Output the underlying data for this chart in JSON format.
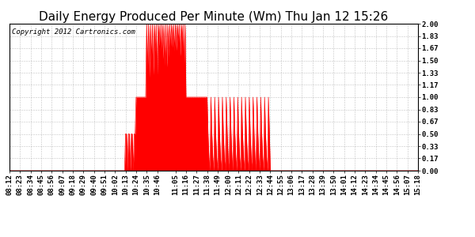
{
  "title": "Daily Energy Produced Per Minute (Wm) Thu Jan 12 15:26",
  "copyright": "Copyright 2012 Cartronics.com",
  "yticks": [
    0.0,
    0.17,
    0.33,
    0.5,
    0.67,
    0.83,
    1.0,
    1.17,
    1.33,
    1.5,
    1.67,
    1.83,
    2.0
  ],
  "ylim": [
    0.0,
    2.0
  ],
  "line_color": "#FF0000",
  "bg_color": "#FFFFFF",
  "grid_color": "#AAAAAA",
  "title_fontsize": 11,
  "copyright_fontsize": 6.5,
  "tick_label_fontsize": 6.5,
  "time_labels": [
    "08:12",
    "08:23",
    "08:34",
    "08:45",
    "08:56",
    "09:07",
    "09:18",
    "09:29",
    "09:40",
    "09:51",
    "10:02",
    "10:13",
    "10:24",
    "10:35",
    "10:46",
    "11:05",
    "11:16",
    "11:27",
    "11:38",
    "11:49",
    "12:00",
    "12:11",
    "12:22",
    "12:33",
    "12:44",
    "12:55",
    "13:06",
    "13:17",
    "13:28",
    "13:39",
    "13:50",
    "14:01",
    "14:12",
    "14:23",
    "14:34",
    "14:45",
    "14:56",
    "15:07",
    "15:18"
  ]
}
